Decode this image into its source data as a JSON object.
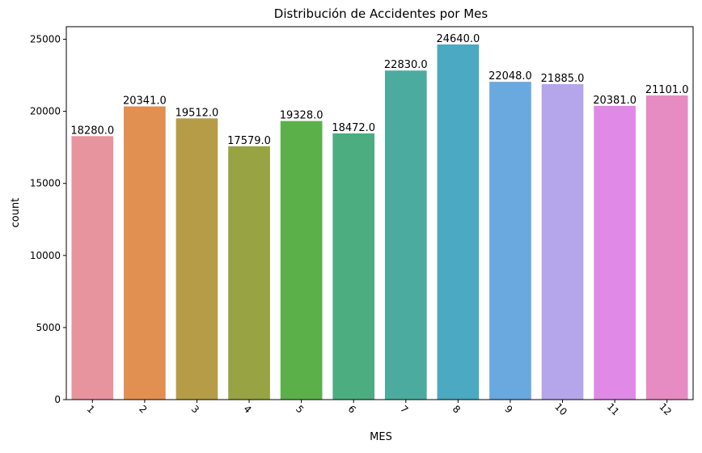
{
  "chart_data": {
    "type": "bar",
    "title": "Distribución de Accidentes por Mes",
    "xlabel": "MES",
    "ylabel": "count",
    "categories": [
      "1",
      "2",
      "3",
      "4",
      "5",
      "6",
      "7",
      "8",
      "9",
      "10",
      "11",
      "12"
    ],
    "values": [
      18280,
      20341,
      19512,
      17579,
      19328,
      18472,
      22830,
      24640,
      22048,
      21885,
      20381,
      21101
    ],
    "data_labels": [
      "18280.0",
      "20341.0",
      "19512.0",
      "17579.0",
      "19328.0",
      "18472.0",
      "22830.0",
      "24640.0",
      "22048.0",
      "21885.0",
      "20381.0",
      "21101.0"
    ],
    "colors": [
      "#e8949f",
      "#e28f52",
      "#b79c47",
      "#98a344",
      "#5bb04a",
      "#4cad80",
      "#4bab9f",
      "#4ba9c1",
      "#69a9e0",
      "#b5a5ea",
      "#e089e7",
      "#e68cc2"
    ],
    "ylim": [
      0,
      25872
    ],
    "yticks": [
      0,
      5000,
      10000,
      15000,
      20000,
      25000
    ],
    "grid": false,
    "legend": "none"
  }
}
